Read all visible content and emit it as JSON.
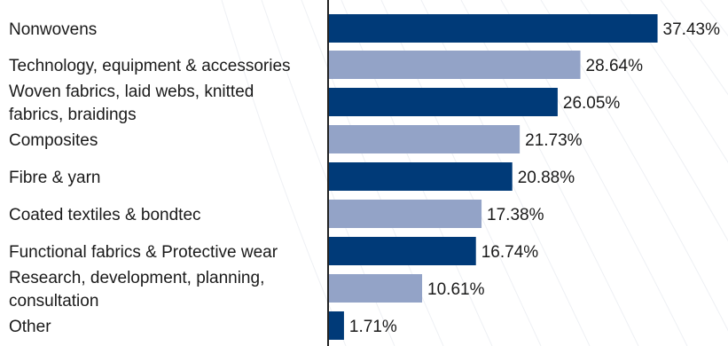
{
  "chart_data": {
    "type": "bar",
    "orientation": "horizontal",
    "categories": [
      [
        "Nonwovens"
      ],
      [
        "Technology, equipment & accessories"
      ],
      [
        "Woven fabrics, laid webs, knitted",
        "fabrics, braidings"
      ],
      [
        "Composites"
      ],
      [
        "Fibre & yarn"
      ],
      [
        "Coated textiles & bondtec"
      ],
      [
        "Functional fabrics & Protective wear"
      ],
      [
        "Research, development, planning,",
        "consultation"
      ],
      [
        "Other"
      ]
    ],
    "values": [
      37.43,
      28.64,
      26.05,
      21.73,
      20.88,
      17.38,
      16.74,
      10.61,
      1.71
    ],
    "value_labels": [
      "37.43%",
      "28.64%",
      "26.05%",
      "21.73%",
      "20.88%",
      "17.38%",
      "16.74%",
      "10.61%",
      "1.71%"
    ],
    "bar_colors": [
      "#003a78",
      "#93a3c7",
      "#003a78",
      "#93a3c7",
      "#003a78",
      "#93a3c7",
      "#003a78",
      "#93a3c7",
      "#003a78"
    ],
    "xlim": [
      0,
      40
    ],
    "grid": false,
    "legend": "none",
    "title": "",
    "xlabel": "",
    "ylabel": ""
  }
}
